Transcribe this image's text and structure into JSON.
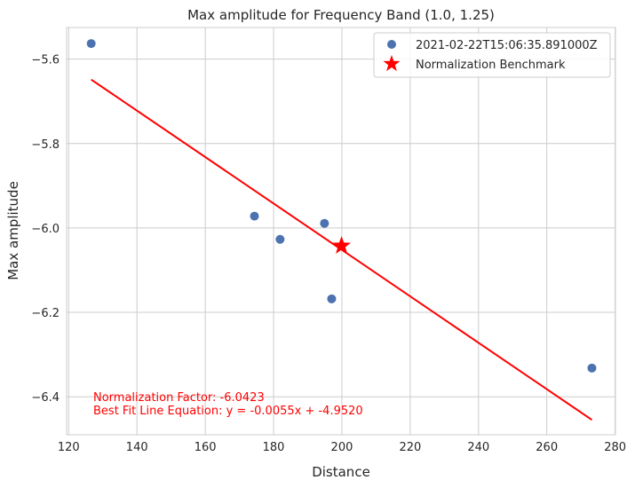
{
  "chart_data": {
    "type": "scatter",
    "title": "Max amplitude for Frequency Band (1.0, 1.25)",
    "xlabel": "Distance",
    "ylabel": "Max amplitude",
    "xlim": [
      119.4,
      280.1
    ],
    "ylim": [
      -6.49,
      -5.525
    ],
    "xticks": [
      120,
      140,
      160,
      180,
      200,
      220,
      240,
      260,
      280
    ],
    "yticks": [
      -5.6,
      -5.8,
      -6.0,
      -6.2,
      -6.4
    ],
    "xtick_labels": [
      "120",
      "140",
      "160",
      "180",
      "200",
      "220",
      "240",
      "260",
      "280"
    ],
    "ytick_labels": [
      "−5.6",
      "−5.8",
      "−6.0",
      "−6.2",
      "−6.4"
    ],
    "grid": true,
    "legend_position": "top-right",
    "series": [
      {
        "name": "2021-02-22T15:06:35.891000Z",
        "kind": "scatter",
        "color": "#4c72b0",
        "x": [
          126.6,
          174.4,
          181.9,
          194.9,
          197.0,
          273.2
        ],
        "y": [
          -5.563,
          -5.972,
          -6.027,
          -5.989,
          -6.168,
          -6.332
        ]
      },
      {
        "name": "Normalization Benchmark",
        "kind": "star",
        "color": "#ff0000",
        "x": [
          199.9
        ],
        "y": [
          -6.0423
        ]
      }
    ],
    "fit_line": {
      "color": "#ff0000",
      "slope": -0.0055,
      "intercept": -4.952,
      "x_range": [
        126.6,
        273.2
      ]
    },
    "annotations": [
      "Normalization Factor: -6.0423",
      "Best Fit Line Equation: y = -0.0055x + -4.9520"
    ],
    "annotation_color": "#ff0000"
  }
}
